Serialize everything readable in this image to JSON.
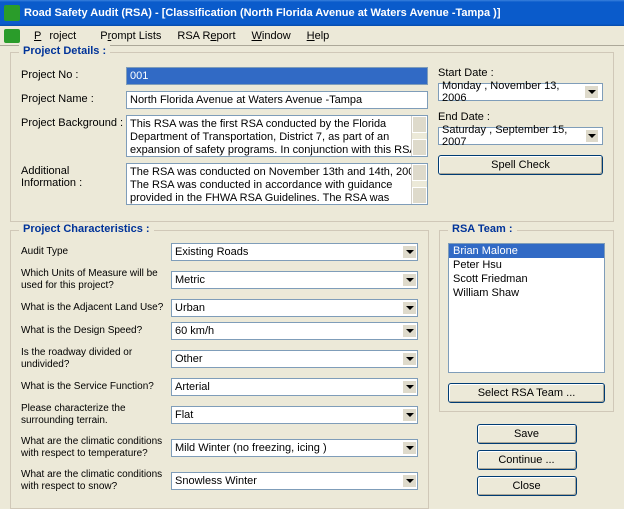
{
  "window": {
    "title": "Road Safety Audit (RSA)  - [Classification (North Florida Avenue at Waters Avenue -Tampa )]"
  },
  "menu": {
    "project": "Project",
    "prompt": "Prompt Lists",
    "report": "RSA Report",
    "window": "Window",
    "help": "Help"
  },
  "details": {
    "legend": "Project Details :",
    "project_no_lbl": "Project No :",
    "project_no": "001",
    "project_name_lbl": "Project Name :",
    "project_name": "North Florida Avenue at Waters Avenue -Tampa",
    "bg_lbl": "Project Background :",
    "bg_text": "This RSA was the first RSA conducted by the Florida Department of Transportation, District 7, as part of an expansion of safety programs. In conjunction with this RSA a brief introductory training program was carried",
    "add_lbl": "Additional Information :",
    "add_text": "The RSA was conducted on November 13th and 14th, 2006. The RSA was conducted in accordance with guidance provided in the FHWA RSA Guidelines. The RSA was initiated with a pre-audit meeting at which",
    "start_lbl": "Start Date :",
    "start_date": "Monday   , November 13, 2006",
    "end_lbl": "End Date :",
    "end_date": "Saturday , September 15, 2007",
    "spell_btn": "Spell Check"
  },
  "chars": {
    "legend": "Project Characteristics :",
    "audit_type_lbl": "Audit Type",
    "audit_type": "Existing Roads",
    "units_lbl": "Which Units of Measure will be used for this project?",
    "units": "Metric",
    "landuse_lbl": "What is the Adjacent Land Use?",
    "landuse": "Urban",
    "speed_lbl": "What is the Design Speed?",
    "speed": "60 km/h",
    "divided_lbl": "Is the roadway divided or undivided?",
    "divided": "Other",
    "service_lbl": "What is the Service Function?",
    "service": "Arterial",
    "terrain_lbl": "Please characterize the surrounding terrain.",
    "terrain": "Flat",
    "temp_lbl": "What are the climatic conditions with respect to temperature?",
    "temp": "Mild Winter (no freezing, icing )",
    "snow_lbl": "What are the climatic conditions with respect to snow?",
    "snow": "Snowless Winter"
  },
  "team": {
    "legend": "RSA Team :",
    "members": [
      "Brian Malone",
      "Peter Hsu",
      "Scott Friedman",
      "William Shaw"
    ],
    "select_btn": "Select RSA Team ..."
  },
  "actions": {
    "save": "Save",
    "continue": "Continue ...",
    "close": "Close"
  }
}
